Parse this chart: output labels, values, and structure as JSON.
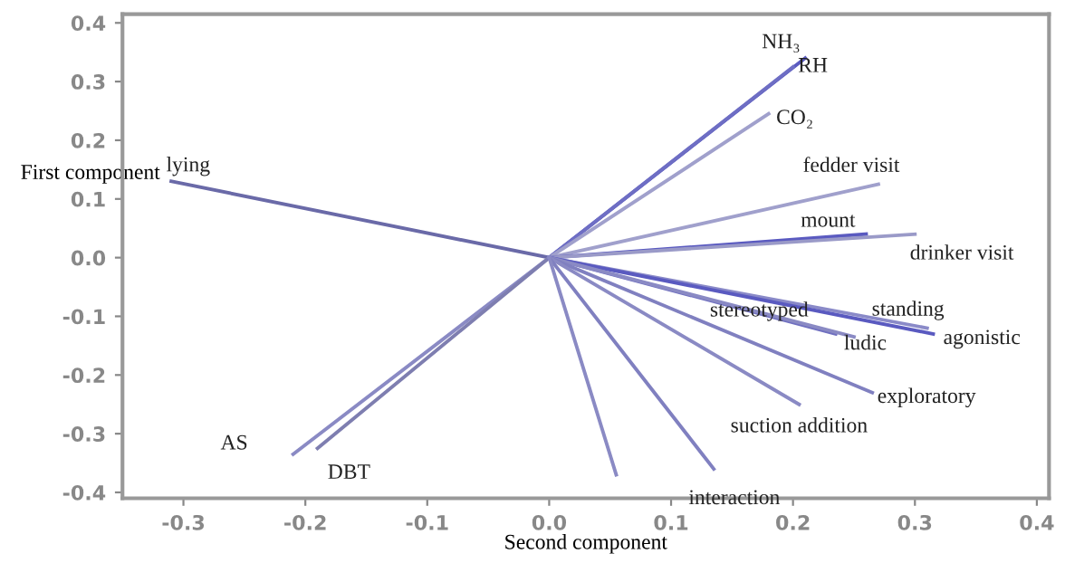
{
  "chart_data": {
    "type": "line",
    "xlabel": "Second component",
    "ylabel": "First component",
    "xlim": [
      -0.35,
      0.41
    ],
    "ylim": [
      -0.41,
      0.415
    ],
    "xticks": [
      -0.3,
      -0.2,
      -0.1,
      {
        "value": 0,
        "label": "0.0"
      },
      0.1,
      0.2,
      0.3,
      0.4
    ],
    "yticks": [
      {
        "value": -0.4,
        "label": "-0.4"
      },
      -0.3,
      -0.2,
      -0.1,
      {
        "value": 0,
        "label": "0.0"
      },
      0.1,
      0.2,
      0.3,
      0.4
    ],
    "grid": false,
    "legend": false,
    "marker": "none",
    "line_style": "solid",
    "series": [
      {
        "name": "lying",
        "color": "#6a6aa8",
        "x": [
          0,
          -0.31
        ],
        "values": [
          0,
          0.13
        ]
      },
      {
        "name": "AS",
        "color": "#8a8ac4",
        "x": [
          0,
          -0.21
        ],
        "values": [
          0,
          -0.335
        ]
      },
      {
        "name": "DBT",
        "color": "#7e7eb0",
        "x": [
          0,
          -0.19
        ],
        "values": [
          0,
          -0.325
        ]
      },
      {
        "name": "NH₃",
        "color": "#5a5ac0",
        "x": [
          0,
          0.21
        ],
        "values": [
          0,
          0.34
        ]
      },
      {
        "name": "RH",
        "color": "#6e6ec4",
        "x": [
          0,
          0.2
        ],
        "values": [
          0,
          0.325
        ]
      },
      {
        "name": "CO₂",
        "color": "#a0a0cc",
        "x": [
          0,
          0.18
        ],
        "values": [
          0,
          0.245
        ]
      },
      {
        "name": "fedder visit",
        "color": "#a0a0cc",
        "x": [
          0,
          0.27
        ],
        "values": [
          0,
          0.125
        ]
      },
      {
        "name": "mount",
        "color": "#5a5ac0",
        "x": [
          0,
          0.26
        ],
        "values": [
          0,
          0.04
        ]
      },
      {
        "name": "drinker visit",
        "color": "#9a9ac8",
        "x": [
          0,
          0.3
        ],
        "values": [
          0,
          0.04
        ]
      },
      {
        "name": "standing",
        "color": "#8a8ac8",
        "x": [
          0,
          0.31
        ],
        "values": [
          0,
          -0.12
        ]
      },
      {
        "name": "agonistic",
        "color": "#5a5ac0",
        "x": [
          0,
          0.315
        ],
        "values": [
          0,
          -0.13
        ]
      },
      {
        "name": "stereotyped",
        "color": "#7070c0",
        "x": [
          0,
          0.235
        ],
        "values": [
          0,
          -0.13
        ]
      },
      {
        "name": "ludic",
        "color": "#8a8ac4",
        "x": [
          0,
          0.25
        ],
        "values": [
          0,
          -0.135
        ]
      },
      {
        "name": "exploratory",
        "color": "#8080c0",
        "x": [
          0,
          0.265
        ],
        "values": [
          0,
          -0.23
        ]
      },
      {
        "name": "suction addition",
        "color": "#8a8ac4",
        "x": [
          0,
          0.205
        ],
        "values": [
          0,
          -0.25
        ]
      },
      {
        "name": "interaction",
        "color": "#8080c0",
        "x": [
          0,
          0.135
        ],
        "values": [
          0,
          -0.36
        ]
      },
      {
        "color": "#8a8ac4",
        "x": [
          0,
          0.055
        ],
        "values": [
          0,
          -0.37
        ]
      }
    ]
  }
}
